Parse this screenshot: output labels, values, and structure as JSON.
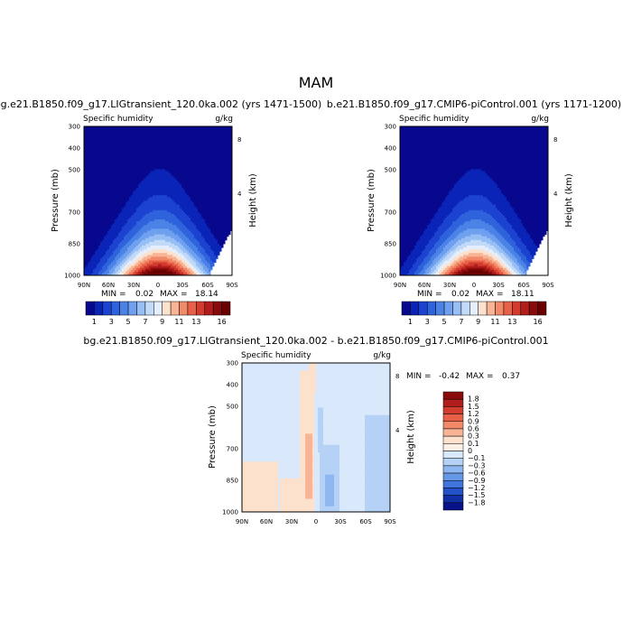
{
  "figure": {
    "title": "MAM",
    "season": "MAM"
  },
  "chart_data": [
    {
      "type": "heatmap",
      "title": "bg.e21.B1850.f09_g17.LIGtransient_120.0ka.002 (yrs 1471-1500)",
      "left_label": "Specific humidity",
      "right_label": "g/kg",
      "xlabel": "",
      "ylabel": "Pressure (mb)",
      "y2label": "Height (km)",
      "x_ticks": [
        "90N",
        "60N",
        "30N",
        "0",
        "30S",
        "60S",
        "90S"
      ],
      "y_ticks": [
        "300",
        "400",
        "500",
        "700",
        "850",
        "1000"
      ],
      "y2_ticks": [
        "8",
        "4"
      ],
      "min_label": "MIN =",
      "min": "0.02",
      "max_label": "MAX =",
      "max": "18.14",
      "contour_levels": [
        1,
        2,
        3,
        4,
        5,
        6,
        7,
        8,
        9,
        10,
        11,
        12,
        13,
        14,
        15,
        16
      ],
      "colorbar_labels": [
        "1",
        "3",
        "5",
        "7",
        "9",
        "11",
        "13",
        "16"
      ],
      "colors": [
        "#08088f",
        "#0b24b8",
        "#1c43d0",
        "#2f63dc",
        "#4b82e6",
        "#6ea0ef",
        "#97bef5",
        "#c0daf8",
        "#e5eefc",
        "#fce2cd",
        "#f7b596",
        "#f28a69",
        "#e86048",
        "#d23c2f",
        "#b01d1b",
        "#8a0b0b",
        "#6a0000"
      ]
    },
    {
      "type": "heatmap",
      "title": "b.e21.B1850.f09_g17.CMIP6-piControl.001 (yrs 1171-1200)",
      "left_label": "Specific humidity",
      "right_label": "g/kg",
      "xlabel": "",
      "ylabel": "Pressure (mb)",
      "y2label": "Height (km)",
      "x_ticks": [
        "90N",
        "60N",
        "30N",
        "0",
        "30S",
        "60S",
        "90S"
      ],
      "y_ticks": [
        "300",
        "400",
        "500",
        "700",
        "850",
        "1000"
      ],
      "y2_ticks": [
        "8",
        "4"
      ],
      "min_label": "MIN =",
      "min": "0.02",
      "max_label": "MAX =",
      "max": "18.11",
      "contour_levels": [
        1,
        2,
        3,
        4,
        5,
        6,
        7,
        8,
        9,
        10,
        11,
        12,
        13,
        14,
        15,
        16
      ],
      "colorbar_labels": [
        "1",
        "3",
        "5",
        "7",
        "9",
        "11",
        "13",
        "16"
      ],
      "colors": [
        "#08088f",
        "#0b24b8",
        "#1c43d0",
        "#2f63dc",
        "#4b82e6",
        "#6ea0ef",
        "#97bef5",
        "#c0daf8",
        "#e5eefc",
        "#fce2cd",
        "#f7b596",
        "#f28a69",
        "#e86048",
        "#d23c2f",
        "#b01d1b",
        "#8a0b0b",
        "#6a0000"
      ]
    },
    {
      "type": "heatmap",
      "title": "bg.e21.B1850.f09_g17.LIGtransient_120.0ka.002 - b.e21.B1850.f09_g17.CMIP6-piControl.001",
      "left_label": "Specific humidity",
      "right_label": "g/kg",
      "xlabel": "",
      "ylabel": "Pressure (mb)",
      "y2label": "Height (km)",
      "x_ticks": [
        "90N",
        "60N",
        "30N",
        "0",
        "30S",
        "60S",
        "90S"
      ],
      "y_ticks": [
        "300",
        "400",
        "500",
        "700",
        "850",
        "1000"
      ],
      "y2_ticks": [
        "8",
        "4"
      ],
      "min_label": "MIN =",
      "min": "-0.42",
      "max_label": "MAX =",
      "max": "0.37",
      "colorbar_labels": [
        "1.8",
        "1.5",
        "1.2",
        "0.9",
        "0.6",
        "0.3",
        "0.1",
        "0",
        "−0.1",
        "−0.3",
        "−0.6",
        "−0.9",
        "−1.2",
        "−1.5",
        "−1.8"
      ],
      "colors": [
        "#8a0b0b",
        "#b01d1b",
        "#d23c2f",
        "#e86048",
        "#f28a69",
        "#f7b596",
        "#fce2cd",
        "#fdf1e6",
        "#d9e8fb",
        "#b5d1f6",
        "#8eb6f0",
        "#6698e6",
        "#3f75dc",
        "#2251c8",
        "#1130a6",
        "#08138a"
      ]
    }
  ]
}
